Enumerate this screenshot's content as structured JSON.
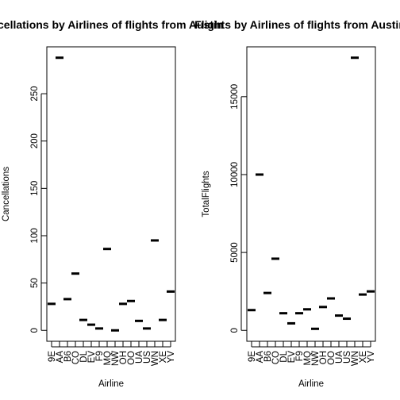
{
  "chart_data": [
    {
      "type": "scatter",
      "marker": "horizontal-dash",
      "title": "Cancellations by Airlines of flights from Austin",
      "xlabel": "Airline",
      "ylabel": "Cancellations",
      "categories": [
        "9E",
        "AA",
        "B6",
        "CO",
        "DL",
        "EV",
        "F9",
        "MQ",
        "NW",
        "OH",
        "OO",
        "UA",
        "US",
        "WN",
        "XE",
        "YV"
      ],
      "values": [
        28,
        288,
        33,
        60,
        11,
        6,
        2,
        86,
        0,
        28,
        31,
        10,
        2,
        95,
        11,
        41
      ],
      "ylim": [
        0,
        288
      ],
      "yticks": [
        0,
        50,
        100,
        150,
        200,
        250
      ],
      "grid": false,
      "legend": "none"
    },
    {
      "type": "scatter",
      "marker": "horizontal-dash",
      "title": "Flights by Airlines of flights from Austin",
      "xlabel": "Airline",
      "ylabel": "TotalFlights",
      "categories": [
        "9E",
        "AA",
        "B6",
        "CO",
        "DL",
        "EV",
        "F9",
        "MQ",
        "NW",
        "OH",
        "OO",
        "UA",
        "US",
        "WN",
        "XE",
        "YV"
      ],
      "values": [
        1300,
        10000,
        2400,
        4600,
        1100,
        450,
        1100,
        1350,
        100,
        1500,
        2050,
        950,
        750,
        17500,
        2300,
        2500
      ],
      "ylim": [
        0,
        17500
      ],
      "yticks": [
        0,
        5000,
        10000,
        15000
      ],
      "grid": false,
      "legend": "none"
    }
  ]
}
